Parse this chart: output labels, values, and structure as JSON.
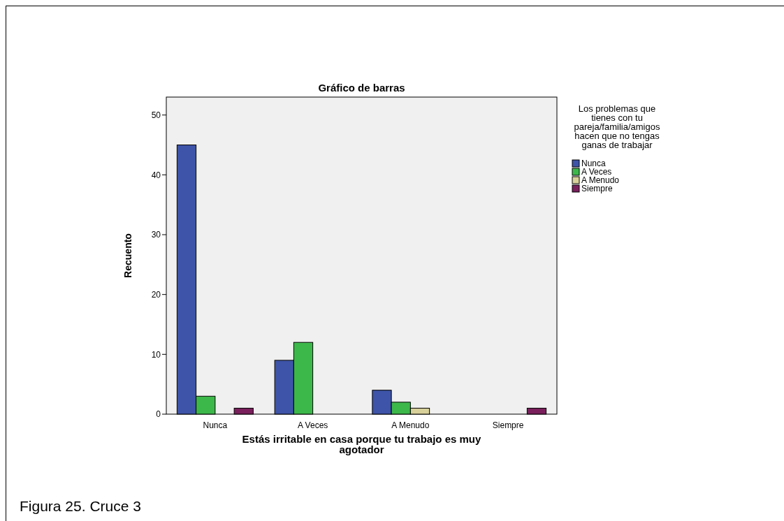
{
  "chart_data": {
    "type": "bar",
    "title": "Gráfico de barras",
    "xlabel": "Estás irritable en casa porque tu trabajo es muy agotador",
    "ylabel": "Recuento",
    "legend_title": "Los problemas que tienes con tu pareja/familia/amigos hacen que no tengas ganas de trabajar",
    "categories": [
      "Nunca",
      "A Veces",
      "A Menudo",
      "Siempre"
    ],
    "series": [
      {
        "name": "Nunca",
        "color": "#3e54a8",
        "values": [
          45,
          9,
          4,
          null
        ]
      },
      {
        "name": "A Veces",
        "color": "#3cb84a",
        "values": [
          3,
          12,
          2,
          null
        ]
      },
      {
        "name": "A Menudo",
        "color": "#d8d19a",
        "values": [
          null,
          null,
          1,
          null
        ]
      },
      {
        "name": "Siempre",
        "color": "#7a1f5c",
        "values": [
          1,
          null,
          null,
          1
        ]
      }
    ],
    "ylim": [
      0,
      53
    ],
    "yticks": [
      0,
      10,
      20,
      30,
      40,
      50
    ],
    "legend": "right",
    "grid": false,
    "annotations": [
      "Figura 25. Cruce 3"
    ]
  }
}
